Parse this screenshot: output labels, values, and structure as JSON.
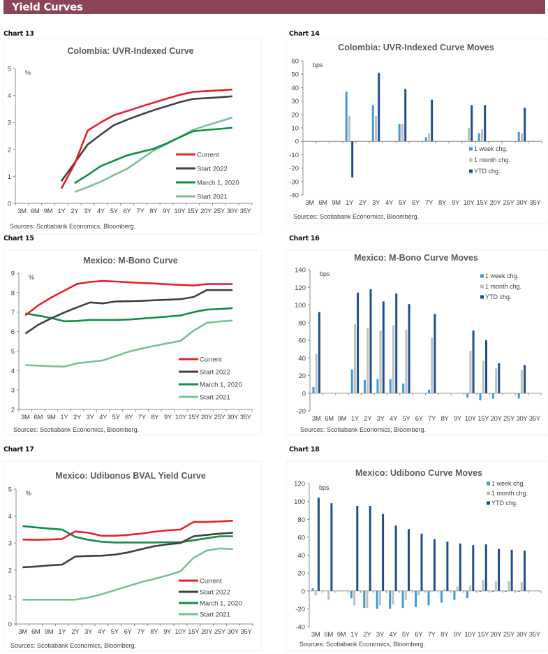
{
  "header": {
    "title": "Yield Curves"
  },
  "colors": {
    "header_bg": "#8B4558",
    "current": "#E8202E",
    "start_2022": "#404040",
    "march_2020": "#0E8F45",
    "start_2021": "#7DBF94",
    "week": "#3E9AD6",
    "month": "#BFBFBF",
    "ytd": "#1F4E8C"
  },
  "chart_data": [
    {
      "id": "chart13",
      "label": "Chart 13",
      "type": "line",
      "title": "Colombia: UVR-Indexed Curve",
      "ylabel": "%",
      "ylim": [
        0,
        5
      ],
      "yticks": [
        0,
        1,
        2,
        3,
        4,
        5
      ],
      "categories": [
        "3M",
        "6M",
        "9M",
        "1Y",
        "2Y",
        "3Y",
        "4Y",
        "5Y",
        "6Y",
        "7Y",
        "8Y",
        "9Y",
        "10Y",
        "15Y",
        "20Y",
        "25Y",
        "30Y",
        "35Y"
      ],
      "legend_position": "bottom-right",
      "source": "Sources: Scotiabank Economics, Bloomberg.",
      "series": [
        {
          "name": "Current",
          "color_key": "current",
          "values": [
            null,
            null,
            null,
            0.55,
            1.45,
            2.7,
            3.0,
            3.27,
            3.42,
            3.58,
            3.73,
            3.88,
            4.02,
            4.13,
            4.16,
            4.19,
            4.22,
            null
          ]
        },
        {
          "name": "Start 2022",
          "color_key": "start_2022",
          "values": [
            null,
            null,
            null,
            0.82,
            1.5,
            2.18,
            2.55,
            2.9,
            3.1,
            3.28,
            3.45,
            3.6,
            3.75,
            3.87,
            3.9,
            3.93,
            3.97,
            null
          ]
        },
        {
          "name": "March 1, 2020",
          "color_key": "march_2020",
          "values": [
            null,
            null,
            null,
            null,
            0.75,
            1.05,
            1.38,
            1.58,
            1.78,
            1.9,
            2.02,
            2.22,
            2.45,
            2.67,
            2.72,
            2.76,
            2.8,
            null
          ]
        },
        {
          "name": "Start 2021",
          "color_key": "start_2021",
          "values": [
            null,
            null,
            null,
            null,
            0.42,
            0.6,
            0.8,
            1.05,
            1.28,
            1.62,
            1.95,
            2.2,
            2.45,
            2.72,
            2.88,
            3.03,
            3.18,
            null
          ]
        }
      ]
    },
    {
      "id": "chart14",
      "label": "Chart 14",
      "type": "bar",
      "title": "Colombia: UVR-Indexed Curve Moves",
      "ylabel": "bps",
      "ylim": [
        -40,
        60
      ],
      "yticks": [
        -40,
        -30,
        -20,
        -10,
        0,
        10,
        20,
        30,
        40,
        50,
        60
      ],
      "categories": [
        "3M",
        "6M",
        "9M",
        "1Y",
        "2Y",
        "3Y",
        "4Y",
        "5Y",
        "6Y",
        "7Y",
        "8Y",
        "9Y",
        "10Y",
        "15Y",
        "20Y",
        "25Y",
        "30Y",
        "35Y"
      ],
      "legend_position": "right-middle",
      "source": "Sources: Scotiabank Economics, Bloomberg.",
      "series": [
        {
          "name": "1 week chg.",
          "color_key": "week",
          "values": [
            null,
            null,
            null,
            37,
            null,
            27,
            null,
            13,
            null,
            3,
            null,
            null,
            null,
            6,
            null,
            null,
            7,
            null
          ]
        },
        {
          "name": "1 month chg.",
          "color_key": "month",
          "values": [
            null,
            null,
            null,
            19,
            null,
            19,
            null,
            13,
            null,
            6,
            null,
            null,
            10,
            9,
            null,
            null,
            6,
            null
          ]
        },
        {
          "name": "YTD chg.",
          "color_key": "ytd",
          "values": [
            null,
            null,
            null,
            -27,
            null,
            51,
            null,
            39,
            null,
            31,
            null,
            null,
            27,
            27,
            null,
            null,
            25,
            null
          ]
        }
      ]
    },
    {
      "id": "chart15",
      "label": "Chart 15",
      "type": "line",
      "title": "Mexico: M-Bono Curve",
      "ylabel": "%",
      "ylim": [
        2,
        9
      ],
      "yticks": [
        2,
        3,
        4,
        5,
        6,
        7,
        8,
        9
      ],
      "categories": [
        "3M",
        "6M",
        "9M",
        "1Y",
        "2Y",
        "3Y",
        "4Y",
        "5Y",
        "6Y",
        "7Y",
        "8Y",
        "9Y",
        "10Y",
        "15Y",
        "20Y",
        "25Y",
        "30Y",
        "35Y"
      ],
      "legend_position": "bottom-right",
      "source": "Sources: Scotiabank Economics, Bloomberg.",
      "series": [
        {
          "name": "Current",
          "color_key": "current",
          "values": [
            6.83,
            7.35,
            7.75,
            8.1,
            8.45,
            8.55,
            8.6,
            8.57,
            8.53,
            8.5,
            8.47,
            8.43,
            8.4,
            8.37,
            8.44,
            8.44,
            8.44,
            null
          ]
        },
        {
          "name": "Start 2022",
          "color_key": "start_2022",
          "values": [
            5.9,
            6.35,
            6.68,
            6.98,
            7.25,
            7.5,
            7.45,
            7.55,
            7.56,
            7.58,
            7.61,
            7.64,
            7.67,
            7.78,
            8.13,
            8.13,
            8.13,
            null
          ]
        },
        {
          "name": "March 1, 2020",
          "color_key": "march_2020",
          "values": [
            6.93,
            6.82,
            6.7,
            6.53,
            6.55,
            6.6,
            6.6,
            6.6,
            6.62,
            6.67,
            6.72,
            6.77,
            6.83,
            7.0,
            7.13,
            7.16,
            7.2,
            null
          ]
        },
        {
          "name": "Start 2021",
          "color_key": "start_2021",
          "values": [
            4.28,
            4.25,
            4.22,
            4.2,
            4.37,
            4.45,
            4.52,
            4.75,
            4.97,
            5.13,
            5.27,
            5.4,
            5.53,
            6.05,
            6.45,
            6.52,
            6.57,
            null
          ]
        }
      ]
    },
    {
      "id": "chart16",
      "label": "Chart 16",
      "type": "bar",
      "title": "Mexico: M-Bono Curve Moves",
      "ylabel": "bps",
      "ylim": [
        -20,
        140
      ],
      "yticks": [
        -20,
        0,
        20,
        40,
        60,
        80,
        100,
        120,
        140
      ],
      "categories": [
        "3M",
        "6M",
        "9M",
        "1Y",
        "2Y",
        "3Y",
        "4Y",
        "5Y",
        "6Y",
        "7Y",
        "8Y",
        "9Y",
        "10Y",
        "15Y",
        "20Y",
        "25Y",
        "30Y",
        "35Y"
      ],
      "legend_position": "top-right",
      "source": "Sources: Scotiabank Economics, Bloomberg.",
      "series": [
        {
          "name": "1 week chg.",
          "color_key": "week",
          "values": [
            7,
            null,
            null,
            27,
            15,
            16,
            16,
            11,
            null,
            4,
            null,
            null,
            -5,
            -8,
            -6,
            null,
            -6,
            null
          ]
        },
        {
          "name": "1 month chg.",
          "color_key": "month",
          "values": [
            45,
            null,
            null,
            78,
            74,
            71,
            77,
            72,
            null,
            63,
            null,
            null,
            48,
            37,
            28,
            null,
            26,
            null
          ]
        },
        {
          "name": "YTD chg.",
          "color_key": "ytd",
          "values": [
            92,
            null,
            null,
            114,
            118,
            104,
            113,
            101,
            null,
            90,
            null,
            null,
            71,
            60,
            34,
            null,
            32,
            null
          ]
        }
      ]
    },
    {
      "id": "chart17",
      "label": "Chart 17",
      "type": "line",
      "title": "Mexico: Udibonos BVAL Yield Curve",
      "ylabel": "%",
      "ylim": [
        0,
        5
      ],
      "yticks": [
        0,
        1,
        2,
        3,
        4,
        5
      ],
      "categories": [
        "3M",
        "6M",
        "9M",
        "1Y",
        "2Y",
        "3Y",
        "4Y",
        "5Y",
        "6Y",
        "7Y",
        "8Y",
        "9Y",
        "10Y",
        "15Y",
        "20Y",
        "25Y",
        "30Y",
        "35Y"
      ],
      "legend_position": "bottom-right",
      "source": "Sources: Scotiabank Economics, Bloomberg.",
      "series": [
        {
          "name": "Current",
          "color_key": "current",
          "values": [
            3.13,
            3.12,
            3.13,
            3.15,
            3.43,
            3.38,
            3.27,
            3.27,
            3.3,
            3.35,
            3.42,
            3.47,
            3.5,
            3.78,
            3.78,
            3.8,
            3.83,
            null
          ]
        },
        {
          "name": "Start 2022",
          "color_key": "start_2022",
          "values": [
            2.1,
            2.13,
            2.17,
            2.2,
            2.5,
            2.52,
            2.53,
            2.57,
            2.65,
            2.77,
            2.88,
            2.95,
            3.0,
            3.25,
            3.3,
            3.35,
            3.38,
            null
          ]
        },
        {
          "name": "March 1, 2020",
          "color_key": "march_2020",
          "values": [
            3.63,
            3.58,
            3.54,
            3.5,
            3.23,
            3.12,
            3.05,
            3.02,
            3.02,
            3.02,
            3.02,
            3.03,
            3.03,
            3.1,
            3.18,
            3.25,
            3.25,
            null
          ]
        },
        {
          "name": "Start 2021",
          "color_key": "start_2021",
          "values": [
            0.9,
            0.9,
            0.9,
            0.9,
            0.9,
            0.98,
            1.1,
            1.25,
            1.4,
            1.55,
            1.67,
            1.8,
            1.95,
            2.45,
            2.72,
            2.8,
            2.78,
            null
          ]
        }
      ]
    },
    {
      "id": "chart18",
      "label": "Chart 18",
      "type": "bar",
      "title": "Mexico: Udibono Curve Moves",
      "ylabel": "bps",
      "ylim": [
        -40,
        120
      ],
      "yticks": [
        -40,
        -20,
        0,
        20,
        40,
        60,
        80,
        100,
        120
      ],
      "categories": [
        "3M",
        "6M",
        "9M",
        "1Y",
        "2Y",
        "3Y",
        "4Y",
        "5Y",
        "6Y",
        "7Y",
        "8Y",
        "9Y",
        "10Y",
        "15Y",
        "20Y",
        "25Y",
        "30Y",
        "35Y"
      ],
      "legend_position": "top-right",
      "source": "Sources: Scotiabank Economics, Bloomberg.",
      "series": [
        {
          "name": "1 week chg.",
          "color_key": "week",
          "values": [
            3,
            null,
            null,
            -8,
            -19,
            -20,
            -20,
            -19,
            -18,
            -16,
            -13,
            -10,
            -8,
            -1,
            -1,
            -1,
            -1,
            null
          ]
        },
        {
          "name": "1 month chg.",
          "color_key": "month",
          "values": [
            -5,
            -10,
            null,
            -16,
            -19,
            -16,
            -15,
            -10,
            -5,
            -1,
            2,
            5,
            6,
            12,
            11,
            11,
            10,
            null
          ]
        },
        {
          "name": "YTD chg.",
          "color_key": "ytd",
          "values": [
            104,
            98,
            null,
            95,
            95,
            86,
            73,
            69,
            64,
            58,
            55,
            53,
            51,
            52,
            47,
            46,
            45,
            null
          ]
        }
      ]
    }
  ]
}
